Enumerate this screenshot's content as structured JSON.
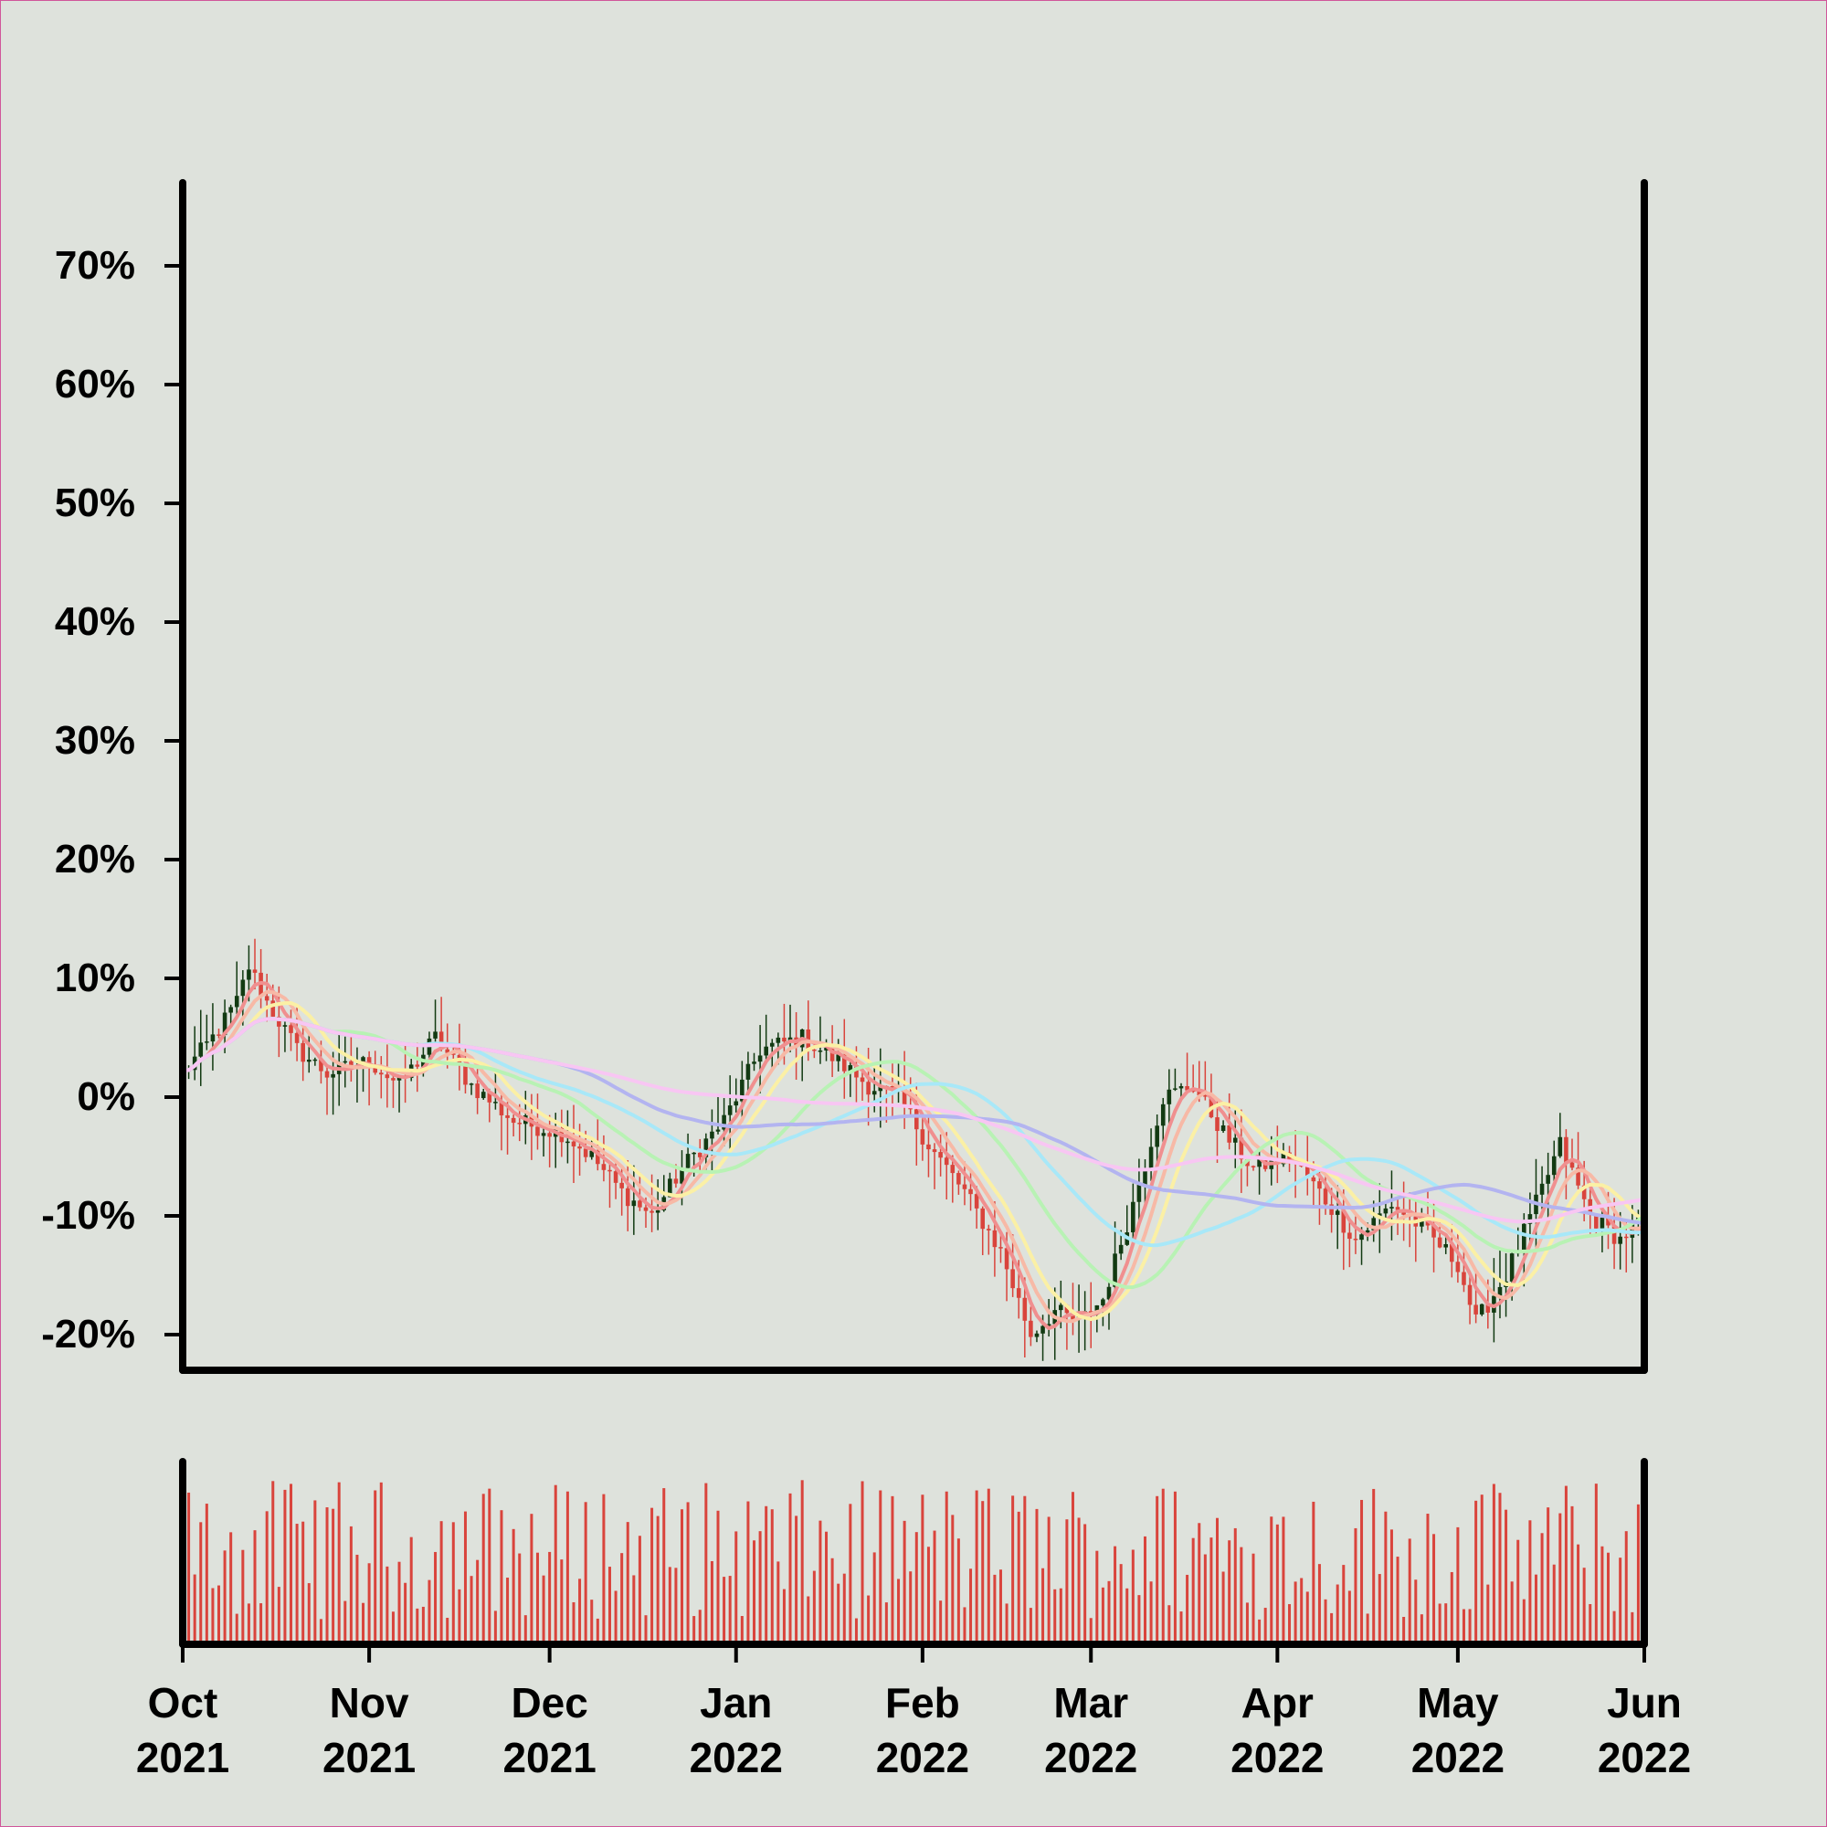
{
  "colors": {
    "background": "#dee2dc",
    "axis": "#000000",
    "up": "#123a12",
    "down": "#d9443c",
    "volume": "#d9443c"
  },
  "chart_data": {
    "type": "candlestick",
    "y_unit": "percent",
    "ylim": [
      -23,
      77
    ],
    "y_ticks": [
      {
        "value": 70,
        "label": "70%"
      },
      {
        "value": 60,
        "label": "60%"
      },
      {
        "value": 50,
        "label": "50%"
      },
      {
        "value": 40,
        "label": "40%"
      },
      {
        "value": 30,
        "label": "30%"
      },
      {
        "value": 20,
        "label": "20%"
      },
      {
        "value": 10,
        "label": "10%"
      },
      {
        "value": 0,
        "label": "0%"
      },
      {
        "value": -10,
        "label": "-10%"
      },
      {
        "value": -20,
        "label": "-20%"
      }
    ],
    "x_range": [
      "2021-10-01",
      "2022-06-01"
    ],
    "x_ticks": [
      {
        "date": "2021-10-01",
        "month": "Oct",
        "year": "2021"
      },
      {
        "date": "2021-11-01",
        "month": "Nov",
        "year": "2021"
      },
      {
        "date": "2021-12-01",
        "month": "Dec",
        "year": "2021"
      },
      {
        "date": "2022-01-01",
        "month": "Jan",
        "year": "2022"
      },
      {
        "date": "2022-02-01",
        "month": "Feb",
        "year": "2022"
      },
      {
        "date": "2022-03-01",
        "month": "Mar",
        "year": "2022"
      },
      {
        "date": "2022-04-01",
        "month": "Apr",
        "year": "2022"
      },
      {
        "date": "2022-05-01",
        "month": "May",
        "year": "2022"
      },
      {
        "date": "2022-06-01",
        "month": "Jun",
        "year": "2022"
      }
    ],
    "close_anchors": [
      [
        "2021-10-01",
        2
      ],
      [
        "2021-10-06",
        5
      ],
      [
        "2021-10-10",
        8
      ],
      [
        "2021-10-12",
        11
      ],
      [
        "2021-10-15",
        8
      ],
      [
        "2021-10-20",
        4
      ],
      [
        "2021-10-25",
        2
      ],
      [
        "2021-11-01",
        3
      ],
      [
        "2021-11-06",
        1
      ],
      [
        "2021-11-12",
        5
      ],
      [
        "2021-11-18",
        1
      ],
      [
        "2021-11-25",
        -2
      ],
      [
        "2021-12-03",
        -3
      ],
      [
        "2021-12-08",
        -5
      ],
      [
        "2021-12-13",
        -8
      ],
      [
        "2021-12-18",
        -10
      ],
      [
        "2021-12-23",
        -6
      ],
      [
        "2021-12-30",
        -2
      ],
      [
        "2022-01-05",
        4
      ],
      [
        "2022-01-12",
        5
      ],
      [
        "2022-01-18",
        3
      ],
      [
        "2022-01-23",
        1
      ],
      [
        "2022-01-28",
        0
      ],
      [
        "2022-02-02",
        -4
      ],
      [
        "2022-02-08",
        -8
      ],
      [
        "2022-02-14",
        -13
      ],
      [
        "2022-02-19",
        -20
      ],
      [
        "2022-02-23",
        -18
      ],
      [
        "2022-02-27",
        -19
      ],
      [
        "2022-03-03",
        -17
      ],
      [
        "2022-03-08",
        -9
      ],
      [
        "2022-03-13",
        0
      ],
      [
        "2022-03-18",
        1
      ],
      [
        "2022-03-23",
        -3
      ],
      [
        "2022-03-28",
        -6
      ],
      [
        "2022-04-03",
        -5
      ],
      [
        "2022-04-08",
        -8
      ],
      [
        "2022-04-14",
        -12
      ],
      [
        "2022-04-20",
        -9
      ],
      [
        "2022-04-25",
        -11
      ],
      [
        "2022-05-01",
        -14
      ],
      [
        "2022-05-04",
        -19
      ],
      [
        "2022-05-09",
        -15
      ],
      [
        "2022-05-14",
        -9
      ],
      [
        "2022-05-18",
        -4
      ],
      [
        "2022-05-23",
        -10
      ],
      [
        "2022-05-28",
        -12
      ],
      [
        "2022-06-01",
        -10
      ]
    ],
    "moving_averages": [
      {
        "period": 5,
        "color": "#f08f8f"
      },
      {
        "period": 8,
        "color": "#f7b9a6"
      },
      {
        "period": 12,
        "color": "#fbf0a5"
      },
      {
        "period": 26,
        "color": "#b8f2b4"
      },
      {
        "period": 40,
        "color": "#a8e8f8"
      },
      {
        "period": 60,
        "color": "#b3b4f0"
      },
      {
        "period": 90,
        "color": "#f8c6f3"
      }
    ],
    "volume_panel": true
  }
}
